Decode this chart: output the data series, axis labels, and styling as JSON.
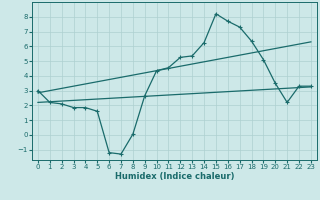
{
  "xlabel": "Humidex (Indice chaleur)",
  "background_color": "#cde8e8",
  "grid_color": "#aed0d0",
  "line_color": "#1a6b6b",
  "xlim": [
    -0.5,
    23.5
  ],
  "ylim": [
    -1.7,
    9.0
  ],
  "xticks": [
    0,
    1,
    2,
    3,
    4,
    5,
    6,
    7,
    8,
    9,
    10,
    11,
    12,
    13,
    14,
    15,
    16,
    17,
    18,
    19,
    20,
    21,
    22,
    23
  ],
  "yticks": [
    -1,
    0,
    1,
    2,
    3,
    4,
    5,
    6,
    7,
    8
  ],
  "line1_x": [
    0,
    1,
    2,
    3,
    4,
    5,
    6,
    7,
    8,
    9,
    10,
    11,
    12,
    13,
    14,
    15,
    16,
    17,
    18,
    19,
    20,
    21,
    22,
    23
  ],
  "line1_y": [
    3.0,
    2.2,
    2.1,
    1.85,
    1.85,
    1.6,
    -1.2,
    -1.3,
    0.05,
    2.65,
    4.35,
    4.55,
    5.25,
    5.35,
    6.25,
    8.2,
    7.7,
    7.3,
    6.35,
    5.1,
    3.5,
    2.2,
    3.3,
    3.3
  ],
  "line2_x": [
    0,
    23
  ],
  "line2_y": [
    2.85,
    6.3
  ],
  "line3_x": [
    0,
    23
  ],
  "line3_y": [
    2.2,
    3.25
  ],
  "marker_size": 3.5,
  "line_width": 0.9
}
